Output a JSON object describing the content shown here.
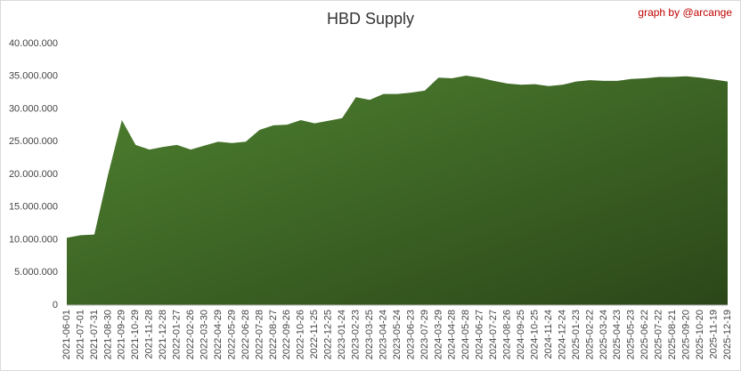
{
  "chart_data": {
    "type": "area",
    "title": "HBD Supply",
    "credit": "graph by @arcange",
    "categories": [
      "2021-06-01",
      "2021-07-01",
      "2021-07-31",
      "2021-08-30",
      "2021-09-29",
      "2021-10-29",
      "2021-11-28",
      "2021-12-28",
      "2022-01-27",
      "2022-02-26",
      "2022-03-30",
      "2022-04-29",
      "2022-05-29",
      "2022-06-28",
      "2022-07-28",
      "2022-08-27",
      "2022-09-26",
      "2022-10-26",
      "2022-11-25",
      "2022-12-25",
      "2023-01-24",
      "2023-02-23",
      "2023-03-25",
      "2023-04-24",
      "2023-05-24",
      "2023-06-23",
      "2023-07-29",
      "2024-03-29",
      "2024-04-28",
      "2024-05-28",
      "2024-06-27",
      "2024-07-27",
      "2024-08-26",
      "2024-09-25",
      "2024-10-25",
      "2024-11-24",
      "2024-12-24",
      "2025-01-23",
      "2025-02-22",
      "2025-03-24",
      "2025-04-23",
      "2025-05-23",
      "2025-06-22",
      "2025-07-22",
      "2025-08-21",
      "2025-09-20",
      "2025-10-20",
      "2025-11-19",
      "2025-12-19"
    ],
    "values": [
      10300000,
      10700000,
      10800000,
      20000000,
      28300000,
      24500000,
      23800000,
      24200000,
      24500000,
      23800000,
      24400000,
      25000000,
      24800000,
      25000000,
      26800000,
      27500000,
      27600000,
      28300000,
      27800000,
      28200000,
      28600000,
      31800000,
      31400000,
      32300000,
      32300000,
      32500000,
      32800000,
      34800000,
      34700000,
      35100000,
      34800000,
      34300000,
      33900000,
      33700000,
      33800000,
      33500000,
      33700000,
      34200000,
      34400000,
      34300000,
      34300000,
      34600000,
      34700000,
      34900000,
      34900000,
      35000000,
      34800000,
      34500000,
      34200000
    ],
    "colors": [
      "#4f8230",
      "#2b4719"
    ],
    "ylim": [
      0,
      40000000
    ],
    "yticks": [
      0,
      {
        "value": 5000000,
        "label": "5.000.000"
      },
      {
        "value": 10000000,
        "label": "10.000.000"
      },
      {
        "value": 15000000,
        "label": "15.000.000"
      },
      {
        "value": 20000000,
        "label": "20.000.000"
      },
      {
        "value": 25000000,
        "label": "25.000.000"
      },
      {
        "value": 30000000,
        "label": "30.000.000"
      },
      {
        "value": 35000000,
        "label": "35.000.000"
      },
      {
        "value": 40000000,
        "label": "40.000.000"
      }
    ],
    "grid": false
  }
}
